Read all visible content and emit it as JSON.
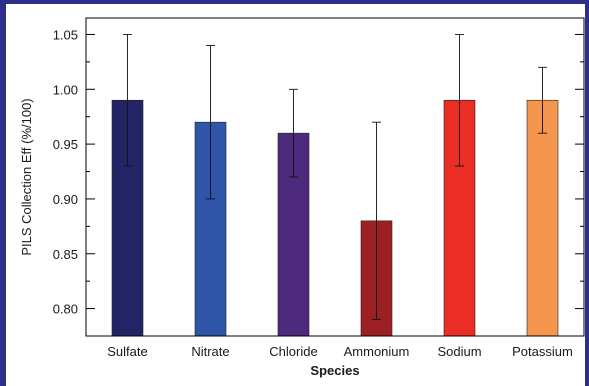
{
  "chart_data": {
    "type": "bar",
    "categories": [
      "Sulfate",
      "Nitrate",
      "Chloride",
      "Ammonium",
      "Sodium",
      "Potassium"
    ],
    "values": [
      0.99,
      0.97,
      0.96,
      0.88,
      0.99,
      0.99
    ],
    "error_low": [
      0.93,
      0.9,
      0.92,
      0.79,
      0.93,
      0.96
    ],
    "error_high": [
      1.05,
      1.04,
      1.0,
      0.97,
      1.05,
      1.02
    ],
    "colors": [
      "#232466",
      "#2e55a8",
      "#4d2a7e",
      "#9c1f24",
      "#ea2d25",
      "#f4964e"
    ],
    "xlabel": "Species",
    "ylabel": "PILS Collection Eff (%/100)",
    "ylim": [
      0.775,
      1.065
    ],
    "yticks": [
      "0.80",
      "0.85",
      "0.90",
      "0.95",
      "1.00",
      "1.05"
    ],
    "grid": false,
    "legend": "none"
  }
}
